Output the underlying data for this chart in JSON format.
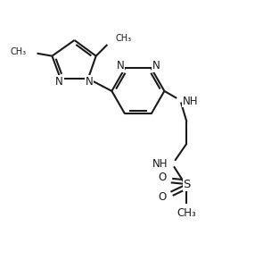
{
  "bg_color": "#ffffff",
  "line_color": "#1a1a1a",
  "text_color": "#1a1a1a",
  "line_width": 1.5,
  "font_size": 8.5,
  "figsize": [
    2.95,
    3.1
  ],
  "dpi": 100,
  "xlim": [
    0,
    10
  ],
  "ylim": [
    0,
    10.5
  ]
}
